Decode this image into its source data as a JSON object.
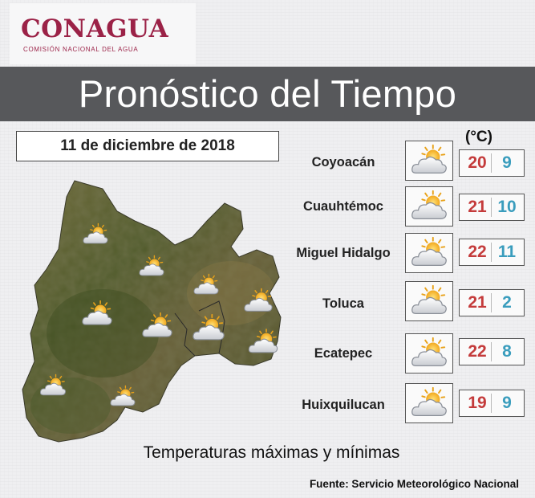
{
  "logo": {
    "name": "CONAGUA",
    "subtitle": "COMISIÓN NACIONAL DEL AGUA",
    "color": "#9b2247"
  },
  "title": "Pronóstico del Tiempo",
  "date": "11 de diciembre de 2018",
  "unit": "(°C)",
  "icon": "partly-cloudy-icon",
  "colors": {
    "max": "#c43b3b",
    "min": "#3a9dbd",
    "banner": "#57585b"
  },
  "locations": [
    {
      "name": "Coyoacán",
      "max": "20",
      "min": "9"
    },
    {
      "name": "Cuauhtémoc",
      "max": "21",
      "min": "10"
    },
    {
      "name": "Miguel Hidalgo",
      "max": "22",
      "min": "11"
    },
    {
      "name": "Toluca",
      "max": "21",
      "min": "2"
    },
    {
      "name": "Ecatepec",
      "max": "22",
      "min": "8"
    },
    {
      "name": "Huixquilucan",
      "max": "19",
      "min": "9"
    }
  ],
  "footer": {
    "caption": "Temperaturas máximas y mínimas",
    "source": "Fuente: Servicio Meteorológico Nacional"
  }
}
